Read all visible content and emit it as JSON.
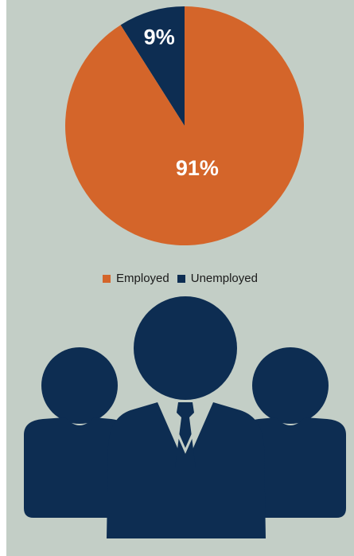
{
  "chart_data": {
    "type": "pie",
    "title": "",
    "slices": [
      {
        "name": "Unemployed",
        "value": 9,
        "label": "9%",
        "color": "#0d2d52"
      },
      {
        "name": "Employed",
        "value": 91,
        "label": "91%",
        "color": "#d4652a"
      }
    ],
    "start_angle_deg": 0,
    "direction": "counterclockwise",
    "legend_position": "bottom",
    "label_color": "#ffffff"
  },
  "colors": {
    "background": "#c3cec6",
    "icon": "#0d2d52"
  },
  "icon": {
    "name": "users-group-icon"
  }
}
